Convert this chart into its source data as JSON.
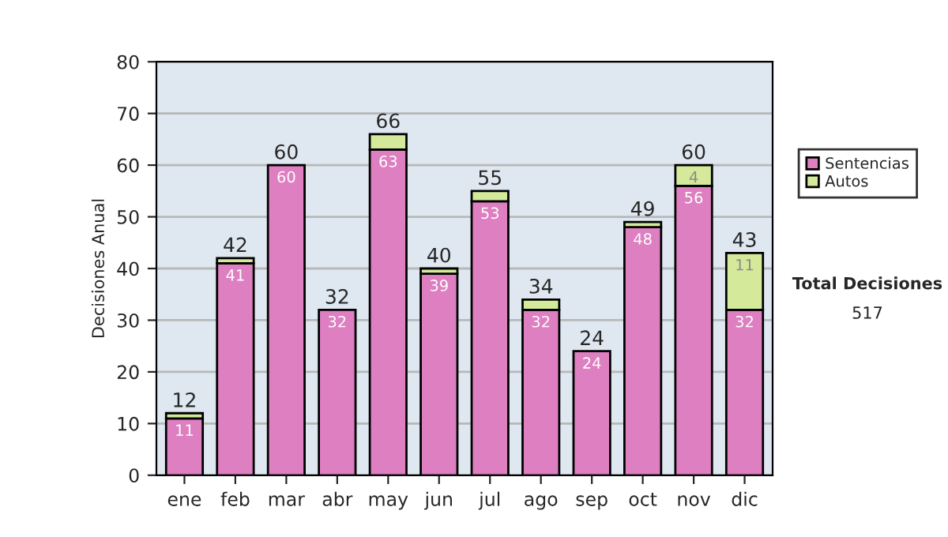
{
  "chart_data": {
    "type": "bar",
    "stacked": true,
    "ylabel": "Decisiones Anual",
    "categories": [
      "ene",
      "feb",
      "mar",
      "abr",
      "may",
      "jun",
      "jul",
      "ago",
      "sep",
      "oct",
      "nov",
      "dic"
    ],
    "series": [
      {
        "name": "Sentencias",
        "color": "#dd7fc0",
        "values": [
          11,
          41,
          60,
          32,
          63,
          39,
          53,
          32,
          24,
          48,
          56,
          32
        ],
        "value_labels": [
          "11",
          "41",
          "60",
          "32",
          "63",
          "39",
          "53",
          "32",
          "24",
          "48",
          "56",
          "32"
        ]
      },
      {
        "name": "Autos",
        "color": "#d4ea9a",
        "values": [
          1,
          1,
          null,
          null,
          3,
          1,
          2,
          2,
          null,
          1,
          4,
          11
        ],
        "value_labels": [
          null,
          null,
          null,
          null,
          null,
          null,
          null,
          null,
          null,
          null,
          "4",
          "11"
        ]
      }
    ],
    "totals": [
      "12",
      "42",
      "60",
      "32",
      "66",
      "40",
      "55",
      "34",
      "24",
      "49",
      "60",
      "43"
    ],
    "ylim": [
      0,
      80
    ],
    "yticks": [
      0,
      10,
      20,
      30,
      40,
      50,
      60,
      70,
      80
    ],
    "grid": "y",
    "legend": "right",
    "annotations": [
      "Total Decisiones",
      "517"
    ]
  }
}
